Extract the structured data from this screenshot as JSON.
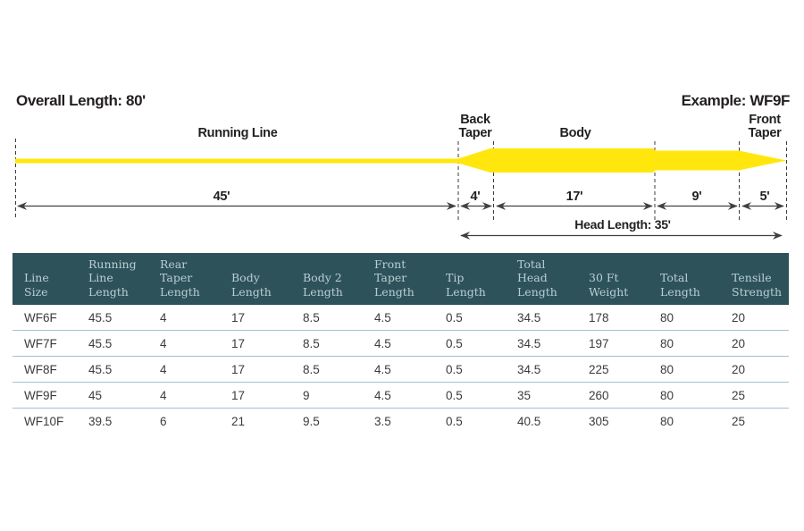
{
  "titles": {
    "overall_length": "Overall Length: 80'",
    "example": "Example: WF9F"
  },
  "diagram": {
    "labels": {
      "running_line": "Running Line",
      "back_taper_line1": "Back",
      "back_taper_line2": "Taper",
      "body": "Body",
      "front_taper_line1": "Front",
      "front_taper_line2": "Taper"
    },
    "measurements": {
      "running_line": "45'",
      "back_taper": "4'",
      "body": "17'",
      "body2": "9'",
      "front_taper": "5'",
      "head_length": "Head Length: 35'"
    },
    "line_color": "#ffe70d"
  },
  "table": {
    "columns": [
      "Line Size",
      "Running Line Length",
      "Rear Taper Length",
      "Body Length",
      "Body 2 Length",
      "Front Taper Length",
      "Tip Length",
      "Total Head Length",
      "30 Ft Weight",
      "Total Length",
      "Tensile Strength"
    ],
    "rows": [
      [
        "WF6F",
        "45.5",
        "4",
        "17",
        "8.5",
        "4.5",
        "0.5",
        "34.5",
        "178",
        "80",
        "20"
      ],
      [
        "WF7F",
        "45.5",
        "4",
        "17",
        "8.5",
        "4.5",
        "0.5",
        "34.5",
        "197",
        "80",
        "20"
      ],
      [
        "WF8F",
        "45.5",
        "4",
        "17",
        "8.5",
        "4.5",
        "0.5",
        "34.5",
        "225",
        "80",
        "20"
      ],
      [
        "WF9F",
        "45",
        "4",
        "17",
        "9",
        "4.5",
        "0.5",
        "35",
        "260",
        "80",
        "25"
      ],
      [
        "WF10F",
        "39.5",
        "6",
        "21",
        "9.5",
        "3.5",
        "0.5",
        "40.5",
        "305",
        "80",
        "25"
      ]
    ],
    "colors": {
      "header_bg": "#2d525a",
      "header_text": "#b9ced2",
      "row_separator": "#a3c2cb",
      "cell_text": "#3b3b3c"
    }
  }
}
